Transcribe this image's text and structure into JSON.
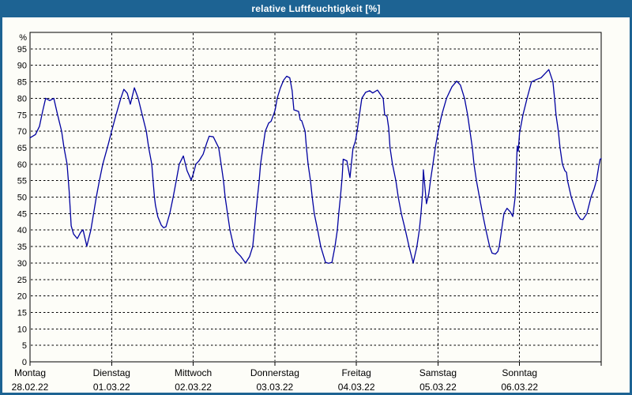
{
  "window": {
    "title": "relative Luftfeuchtigkeit [%]"
  },
  "colors": {
    "frame_blue": "#1d6393",
    "title_text": "#ffffff",
    "plot_background": "#fdfdf8",
    "grid_black": "#000000",
    "series_blue": "#0000a0"
  },
  "chart_data": {
    "type": "line",
    "title": "relative Luftfeuchtigkeit [%]",
    "ylabel": "%",
    "y_unit": "%",
    "ylim": [
      0,
      100
    ],
    "xlim_hours": [
      0,
      168
    ],
    "grid": "dashed",
    "legend": "none",
    "y_ticks": [
      0,
      5,
      10,
      15,
      20,
      25,
      30,
      35,
      40,
      45,
      50,
      55,
      60,
      65,
      70,
      75,
      80,
      85,
      90,
      95
    ],
    "x_days": [
      {
        "name": "Montag",
        "date": "28.02.22"
      },
      {
        "name": "Dienstag",
        "date": "01.03.22"
      },
      {
        "name": "Mittwoch",
        "date": "02.03.22"
      },
      {
        "name": "Donnerstag",
        "date": "03.03.22"
      },
      {
        "name": "Freitag",
        "date": "04.03.22"
      },
      {
        "name": "Samstag",
        "date": "05.03.22"
      },
      {
        "name": "Sonntag",
        "date": "06.03.22"
      }
    ],
    "series": [
      {
        "name": "relative Luftfeuchtigkeit",
        "color": "#0000a0",
        "x_unit": "hours_since_monday_00",
        "points": [
          [
            0,
            68
          ],
          [
            1.6,
            69
          ],
          [
            2.8,
            71.5
          ],
          [
            3.7,
            76
          ],
          [
            4.6,
            80
          ],
          [
            5.8,
            79.3
          ],
          [
            7,
            80
          ],
          [
            8.1,
            75
          ],
          [
            9.3,
            70
          ],
          [
            10,
            65
          ],
          [
            10.9,
            60
          ],
          [
            11.5,
            52
          ],
          [
            12.1,
            41.3
          ],
          [
            12.8,
            38.8
          ],
          [
            13.9,
            37.4
          ],
          [
            14.9,
            39.3
          ],
          [
            15.6,
            40.1
          ],
          [
            16.7,
            35.1
          ],
          [
            17.9,
            40
          ],
          [
            19.5,
            50
          ],
          [
            20.4,
            55
          ],
          [
            21.4,
            60
          ],
          [
            23,
            66
          ],
          [
            24,
            70
          ],
          [
            25.3,
            75
          ],
          [
            26.7,
            80
          ],
          [
            27.6,
            82.7
          ],
          [
            28.6,
            81.5
          ],
          [
            29.5,
            78.2
          ],
          [
            30.7,
            83.2
          ],
          [
            31.8,
            80
          ],
          [
            33,
            75
          ],
          [
            34.2,
            70
          ],
          [
            34.9,
            65
          ],
          [
            35.8,
            60
          ],
          [
            36.2,
            55
          ],
          [
            36.6,
            50
          ],
          [
            36.9,
            47.5
          ],
          [
            37.6,
            44
          ],
          [
            38.6,
            41.5
          ],
          [
            39.3,
            40.7
          ],
          [
            40,
            41
          ],
          [
            41.1,
            45
          ],
          [
            42.1,
            50
          ],
          [
            43,
            55
          ],
          [
            43.9,
            60
          ],
          [
            45.1,
            62.5
          ],
          [
            46.2,
            58
          ],
          [
            47.4,
            55.2
          ],
          [
            48,
            57
          ],
          [
            48.8,
            60
          ],
          [
            49.7,
            61
          ],
          [
            50.9,
            63
          ],
          [
            52,
            66.5
          ],
          [
            52.7,
            68.5
          ],
          [
            53.9,
            68.3
          ],
          [
            55.5,
            65
          ],
          [
            56.2,
            60
          ],
          [
            56.9,
            55
          ],
          [
            57.4,
            50
          ],
          [
            58.1,
            45
          ],
          [
            58.8,
            40
          ],
          [
            59.9,
            35
          ],
          [
            60.6,
            33.5
          ],
          [
            62,
            32
          ],
          [
            63.4,
            30
          ],
          [
            64.6,
            32
          ],
          [
            65.5,
            35
          ],
          [
            66,
            40
          ],
          [
            66.4,
            45
          ],
          [
            66.9,
            50
          ],
          [
            67.4,
            55
          ],
          [
            67.8,
            60
          ],
          [
            68.5,
            65
          ],
          [
            69.2,
            70
          ],
          [
            70.2,
            72.5
          ],
          [
            70.9,
            73
          ],
          [
            71.8,
            75.5
          ],
          [
            72.1,
            76.5
          ],
          [
            72.7,
            80
          ],
          [
            73.6,
            83
          ],
          [
            74.6,
            85.5
          ],
          [
            75.5,
            86.7
          ],
          [
            76.4,
            86.2
          ],
          [
            77.1,
            82.3
          ],
          [
            77.6,
            76.5
          ],
          [
            79,
            76
          ],
          [
            79.5,
            73.4
          ],
          [
            79.9,
            73.2
          ],
          [
            80.9,
            70
          ],
          [
            81.3,
            65
          ],
          [
            81.8,
            60
          ],
          [
            82.5,
            55
          ],
          [
            83,
            50
          ],
          [
            83.6,
            45
          ],
          [
            84.6,
            40
          ],
          [
            85.5,
            35
          ],
          [
            86.9,
            30.2
          ],
          [
            87.8,
            29.9
          ],
          [
            88.8,
            30.2
          ],
          [
            89.7,
            35
          ],
          [
            90.4,
            40
          ],
          [
            90.8,
            45
          ],
          [
            91.3,
            50
          ],
          [
            91.8,
            56
          ],
          [
            92.1,
            61.5
          ],
          [
            93.2,
            61
          ],
          [
            94.1,
            55.9
          ],
          [
            95,
            64.8
          ],
          [
            95.7,
            67
          ],
          [
            96.2,
            70
          ],
          [
            96.9,
            75
          ],
          [
            97.6,
            80
          ],
          [
            98.7,
            81.8
          ],
          [
            99.9,
            82.3
          ],
          [
            100.8,
            81.6
          ],
          [
            102.2,
            82.5
          ],
          [
            103.2,
            81
          ],
          [
            103.9,
            80
          ],
          [
            104.3,
            75
          ],
          [
            105,
            74.5
          ],
          [
            105.5,
            71
          ],
          [
            105.9,
            65
          ],
          [
            106.6,
            60
          ],
          [
            107.6,
            55
          ],
          [
            108.3,
            50
          ],
          [
            109.2,
            45
          ],
          [
            110.4,
            40
          ],
          [
            111.5,
            35
          ],
          [
            112.7,
            30
          ],
          [
            113.8,
            35
          ],
          [
            114.5,
            40
          ],
          [
            115,
            45
          ],
          [
            115.5,
            52
          ],
          [
            115.7,
            58.3
          ],
          [
            116.6,
            48
          ],
          [
            117.3,
            51
          ],
          [
            117.8,
            55.2
          ],
          [
            118.5,
            60
          ],
          [
            119.2,
            65
          ],
          [
            120.1,
            70.3
          ],
          [
            121.1,
            75
          ],
          [
            122.5,
            80
          ],
          [
            124.1,
            83.5
          ],
          [
            125.5,
            85.2
          ],
          [
            126.6,
            84
          ],
          [
            127.8,
            80
          ],
          [
            128.7,
            75
          ],
          [
            129.4,
            70
          ],
          [
            130.1,
            65
          ],
          [
            130.6,
            60
          ],
          [
            131.3,
            55
          ],
          [
            132.2,
            50
          ],
          [
            133.1,
            45
          ],
          [
            134.1,
            40
          ],
          [
            135.2,
            35
          ],
          [
            135.9,
            33
          ],
          [
            136.9,
            32.7
          ],
          [
            137.6,
            33.5
          ],
          [
            138,
            35
          ],
          [
            138.7,
            40
          ],
          [
            139.4,
            45
          ],
          [
            140.3,
            46.6
          ],
          [
            141.3,
            45.5
          ],
          [
            142,
            44.1
          ],
          [
            142.7,
            50
          ],
          [
            142.9,
            55
          ],
          [
            143.1,
            60
          ],
          [
            143.3,
            65.5
          ],
          [
            143.6,
            63.9
          ],
          [
            144,
            69.5
          ],
          [
            145,
            75
          ],
          [
            146.2,
            80
          ],
          [
            147.5,
            85
          ],
          [
            149.2,
            85.8
          ],
          [
            150.3,
            86.2
          ],
          [
            151.5,
            87.5
          ],
          [
            152.6,
            88.7
          ],
          [
            153.8,
            85
          ],
          [
            154.3,
            80
          ],
          [
            154.7,
            75
          ],
          [
            155.4,
            70
          ],
          [
            155.9,
            65
          ],
          [
            156.6,
            60
          ],
          [
            157.3,
            58
          ],
          [
            157.8,
            57.5
          ],
          [
            158.1,
            55
          ],
          [
            159.2,
            50
          ],
          [
            160.8,
            45
          ],
          [
            161.9,
            43.3
          ],
          [
            162.6,
            43.2
          ],
          [
            163.8,
            45
          ],
          [
            165,
            50
          ],
          [
            165.9,
            52.5
          ],
          [
            166.6,
            55
          ],
          [
            167.3,
            59.5
          ],
          [
            167.7,
            61.5
          ],
          [
            168,
            61.7
          ]
        ]
      }
    ]
  }
}
